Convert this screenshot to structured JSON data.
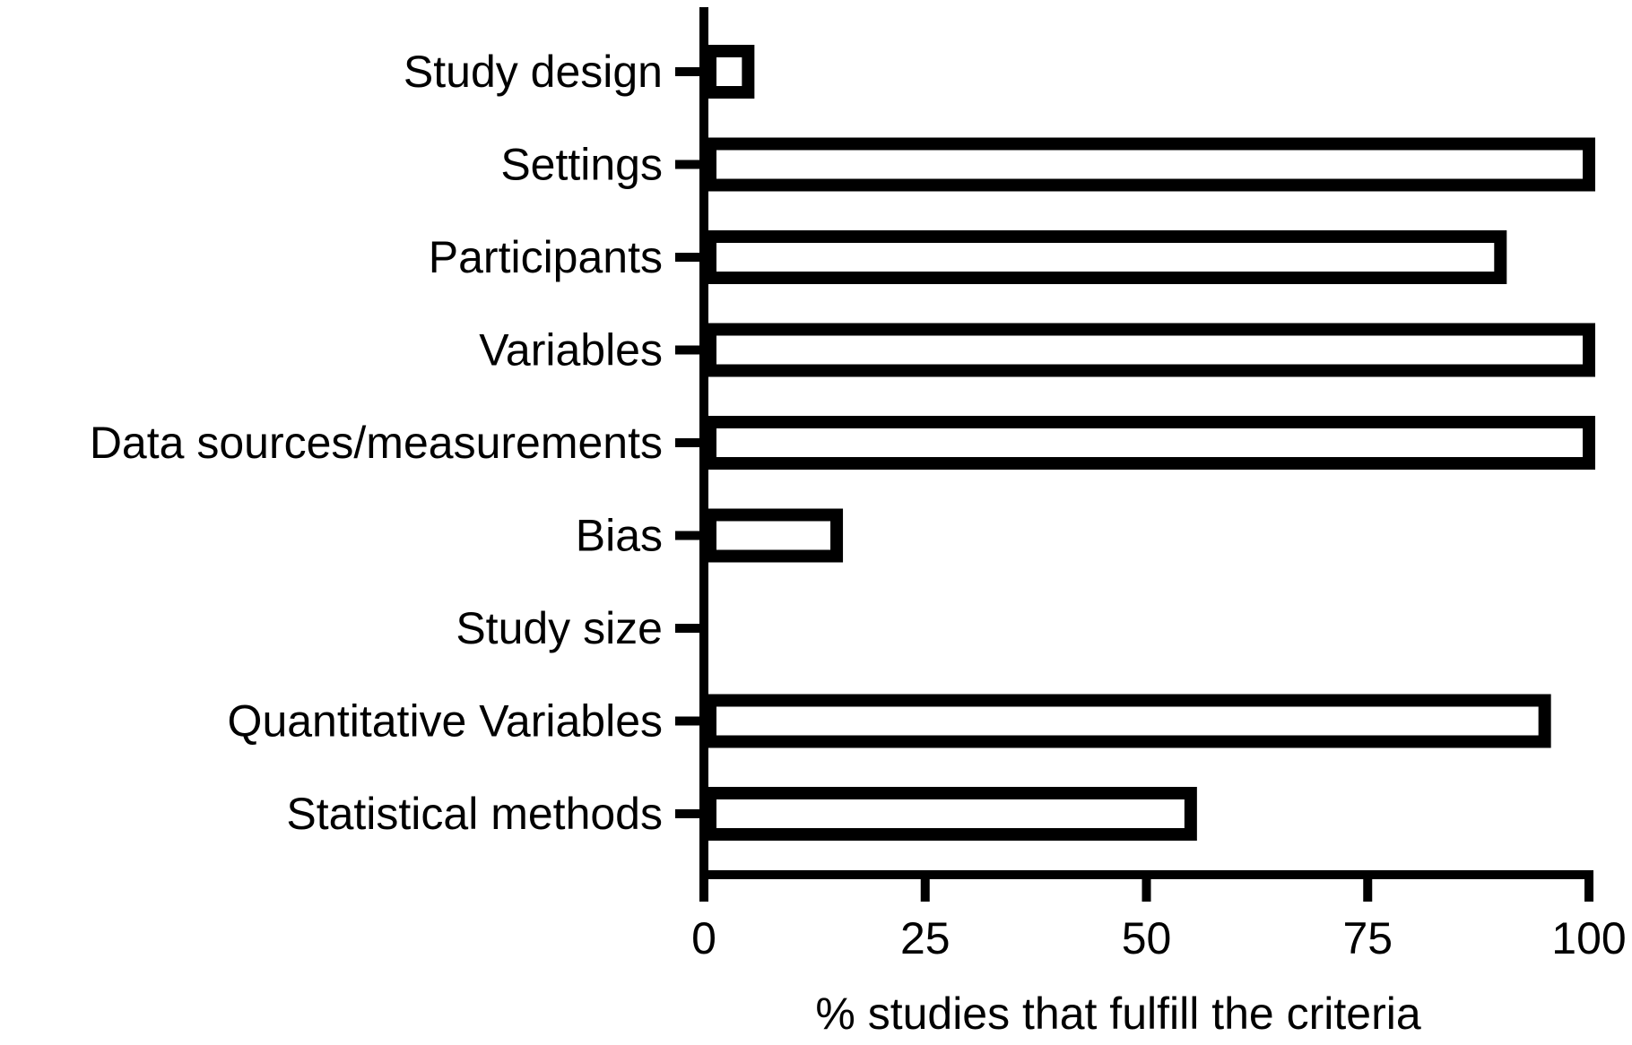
{
  "chart_data": {
    "type": "bar",
    "orientation": "horizontal",
    "categories": [
      "Study design",
      "Settings",
      "Participants",
      "Variables",
      "Data sources/measurements",
      "Bias",
      "Study size",
      "Quantitative Variables",
      "Statistical methods"
    ],
    "values": [
      5,
      100,
      90,
      100,
      100,
      15,
      0,
      95,
      55
    ],
    "title": "",
    "xlabel": "% studies that fulfill the criteria",
    "ylabel": "",
    "xlim": [
      0,
      100
    ],
    "xticks": [
      0,
      25,
      50,
      75,
      100
    ],
    "grid": false,
    "legend": "none",
    "colors": {
      "bar_fill": "#ffffff",
      "bar_stroke": "#000000",
      "axis": "#000000",
      "text": "#000000"
    }
  }
}
